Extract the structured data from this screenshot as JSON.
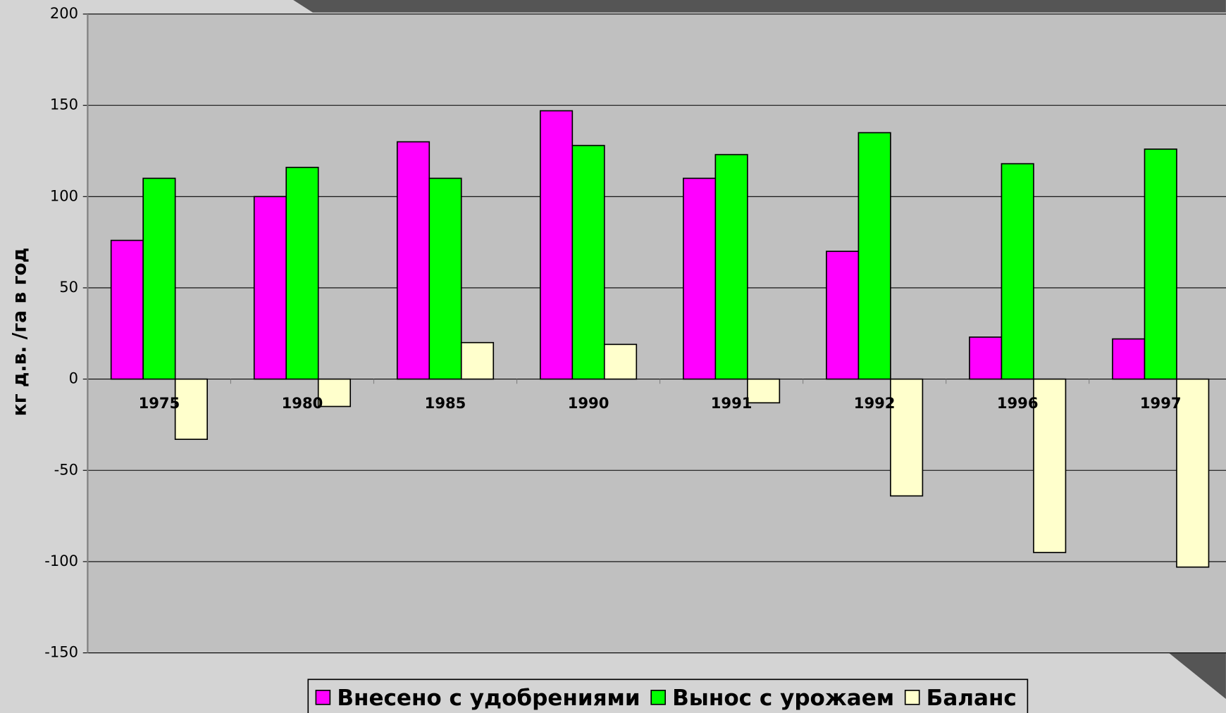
{
  "chart_data": {
    "type": "bar",
    "y_label": "кг д.в. /га в год",
    "categories": [
      "1975",
      "1980",
      "1985",
      "1990",
      "1991",
      "1992",
      "1996",
      "1997"
    ],
    "series": [
      {
        "name": "Внесено с удобрениями",
        "color": "#ff00ff",
        "values": [
          76,
          100,
          130,
          147,
          110,
          70,
          23,
          22
        ]
      },
      {
        "name": "Вынос с урожаем",
        "color": "#00ff00",
        "values": [
          110,
          116,
          110,
          128,
          123,
          135,
          118,
          126
        ]
      },
      {
        "name": "Баланс",
        "color": "#ffffcc",
        "values": [
          -33,
          -15,
          20,
          19,
          -13,
          -64,
          -95,
          -103
        ]
      }
    ],
    "ylim": [
      -150,
      200
    ],
    "yticks": [
      -150,
      -100,
      -50,
      0,
      50,
      100,
      150,
      200
    ],
    "grid": true,
    "legend": "bottom"
  }
}
